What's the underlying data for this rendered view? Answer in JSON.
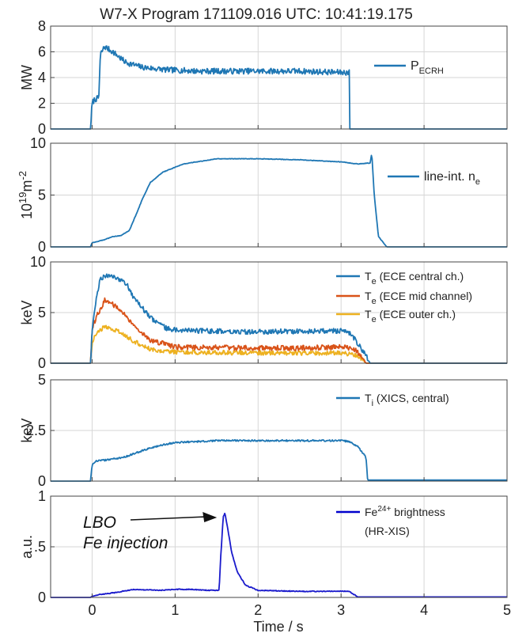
{
  "title": "W7-X Program 171109.016  UTC: 10:41:19.175",
  "chart_data": {
    "type": "line",
    "xlabel": "Time / s",
    "xlim": [
      -0.5,
      5
    ],
    "xticks": [
      0,
      1,
      2,
      3,
      4,
      5
    ],
    "xtick_labels": [
      "0",
      "1",
      "2",
      "3",
      "4",
      "5"
    ],
    "grid": true,
    "panels": [
      {
        "ylabel": "MW",
        "ylim": [
          0,
          8
        ],
        "yticks": [
          0,
          2,
          4,
          6,
          8
        ],
        "ytick_labels": [
          "0",
          "2",
          "4",
          "6",
          "8"
        ],
        "legend": [
          {
            "base": "P",
            "sub": "ECRH",
            "rest": "",
            "color": "#1f77b4"
          }
        ],
        "series": [
          {
            "name": "P_ECRH",
            "color": "#1f77b4",
            "noise": 0.45,
            "x": [
              -0.5,
              -0.02,
              0.0,
              0.03,
              0.08,
              0.1,
              0.15,
              0.25,
              0.4,
              0.6,
              0.9,
              1.3,
              2.0,
              2.5,
              2.98,
              3.0,
              3.1,
              3.1,
              5.0
            ],
            "y": [
              0,
              0,
              2.0,
              2.3,
              2.4,
              5.8,
              6.4,
              6.0,
              5.2,
              4.8,
              4.6,
              4.5,
              4.5,
              4.5,
              4.4,
              4.4,
              4.4,
              0,
              0
            ]
          }
        ]
      },
      {
        "ylabel": "10^19 m^-2",
        "ylim": [
          0,
          10
        ],
        "yticks": [
          0,
          5,
          10
        ],
        "ytick_labels": [
          "0",
          "5",
          "10"
        ],
        "legend": [
          {
            "base": "line-int. n",
            "sub": "e",
            "rest": "",
            "color": "#1f77b4"
          }
        ],
        "series": [
          {
            "name": "line-int. n_e",
            "color": "#1f77b4",
            "noise": 0.05,
            "x": [
              -0.02,
              0.0,
              0.15,
              0.25,
              0.35,
              0.45,
              0.55,
              0.6,
              0.7,
              0.85,
              1.1,
              1.5,
              2.0,
              2.5,
              3.0,
              3.2,
              3.35,
              3.37,
              3.4,
              3.45,
              3.55
            ],
            "y": [
              0,
              0.4,
              0.7,
              1.0,
              1.1,
              1.6,
              3.5,
              4.5,
              6.2,
              7.2,
              8.0,
              8.5,
              8.5,
              8.4,
              8.2,
              8.0,
              8.1,
              9.0,
              5.0,
              1.0,
              0
            ]
          }
        ]
      },
      {
        "ylabel": "keV",
        "ylim": [
          0,
          10
        ],
        "yticks": [
          0,
          5,
          10
        ],
        "ytick_labels": [
          "0",
          "5",
          "10"
        ],
        "legend": [
          {
            "base": "T",
            "sub": "e",
            "rest": " (ECE central ch.)",
            "color": "#1f77b4"
          },
          {
            "base": "T",
            "sub": "e",
            "rest": " (ECE mid channel)",
            "color": "#d95319"
          },
          {
            "base": "T",
            "sub": "e",
            "rest": " (ECE outer ch.)",
            "color": "#edb120"
          }
        ],
        "series": [
          {
            "name": "T_e (ECE outer ch.)",
            "color": "#edb120",
            "noise": 0.45,
            "x": [
              -0.5,
              -0.02,
              0.0,
              0.05,
              0.15,
              0.3,
              0.5,
              0.7,
              1.0,
              2.0,
              3.0,
              3.15,
              3.25,
              3.3,
              5.0
            ],
            "y": [
              0,
              0,
              2.0,
              3.0,
              3.6,
              3.2,
              2.2,
              1.4,
              1.1,
              1.0,
              1.0,
              0.9,
              0.4,
              0,
              0
            ]
          },
          {
            "name": "T_e (ECE mid channel)",
            "color": "#d95319",
            "noise": 0.5,
            "x": [
              -0.5,
              -0.02,
              0.0,
              0.05,
              0.15,
              0.3,
              0.5,
              0.7,
              1.0,
              2.0,
              2.5,
              3.0,
              3.15,
              3.25,
              3.3,
              5.0
            ],
            "y": [
              0,
              0,
              3.5,
              4.5,
              6.2,
              5.6,
              3.8,
              2.3,
              1.6,
              1.5,
              1.5,
              1.6,
              1.5,
              0.6,
              0,
              0
            ]
          },
          {
            "name": "T_e (ECE central ch.)",
            "color": "#1f77b4",
            "noise": 0.5,
            "x": [
              -0.5,
              -0.02,
              0.0,
              0.05,
              0.1,
              0.2,
              0.3,
              0.4,
              0.5,
              0.7,
              0.9,
              1.2,
              2.0,
              3.0,
              3.1,
              3.2,
              3.3,
              3.35,
              5.0
            ],
            "y": [
              0,
              0,
              3.0,
              6.5,
              8.4,
              8.6,
              8.4,
              8.0,
              6.5,
              4.5,
              3.4,
              3.2,
              3.1,
              3.2,
              3.0,
              2.0,
              0.8,
              0,
              0
            ]
          }
        ]
      },
      {
        "ylabel": "keV",
        "ylim": [
          0,
          5
        ],
        "yticks": [
          0,
          2.5,
          5
        ],
        "ytick_labels": [
          "0",
          "2.5",
          "5"
        ],
        "legend": [
          {
            "base": "T",
            "sub": "i",
            "rest": " (XICS, central)",
            "color": "#1f77b4"
          }
        ],
        "series": [
          {
            "name": "T_i (XICS, central)",
            "color": "#1f77b4",
            "noise": 0.08,
            "x": [
              -0.02,
              0.0,
              0.05,
              0.2,
              0.4,
              0.6,
              0.8,
              1.0,
              1.5,
              2.0,
              2.5,
              3.0,
              3.1,
              3.2,
              3.3,
              3.32,
              5.0
            ],
            "y": [
              0,
              0.8,
              1.0,
              1.05,
              1.2,
              1.5,
              1.75,
              1.9,
              2.0,
              2.0,
              2.0,
              2.0,
              1.95,
              1.7,
              1.2,
              0.05,
              0.05
            ]
          }
        ]
      },
      {
        "ylabel": "a.u.",
        "ylim": [
          0,
          1
        ],
        "yticks": [
          0,
          0.5,
          1
        ],
        "ytick_labels": [
          "0",
          ".5",
          "1"
        ],
        "legend": [
          {
            "base": "Fe",
            "sup": "24+",
            "rest": " brightness",
            "color": "#0000cc"
          },
          {
            "base": "(HR-XIS)",
            "rest": "",
            "color": "none"
          }
        ],
        "series": [
          {
            "name": "Fe24+ brightness (HR-XIS)",
            "color": "#1a1acc",
            "noise": 0.008,
            "x": [
              -0.5,
              -0.02,
              0.0,
              0.1,
              0.3,
              0.5,
              0.8,
              1.0,
              1.2,
              1.4,
              1.53,
              1.55,
              1.58,
              1.6,
              1.63,
              1.68,
              1.75,
              1.85,
              2.0,
              2.5,
              3.0,
              3.1,
              3.2,
              5.0
            ],
            "y": [
              0,
              0,
              0.01,
              0.03,
              0.05,
              0.08,
              0.07,
              0.08,
              0.08,
              0.07,
              0.07,
              0.4,
              0.8,
              0.83,
              0.7,
              0.45,
              0.25,
              0.12,
              0.07,
              0.06,
              0.06,
              0.06,
              0.005,
              0.005
            ]
          }
        ],
        "annotation": {
          "text_lines": [
            "LBO",
            "Fe injection"
          ],
          "arrow_to": [
            1.58,
            0.82
          ]
        }
      }
    ]
  }
}
